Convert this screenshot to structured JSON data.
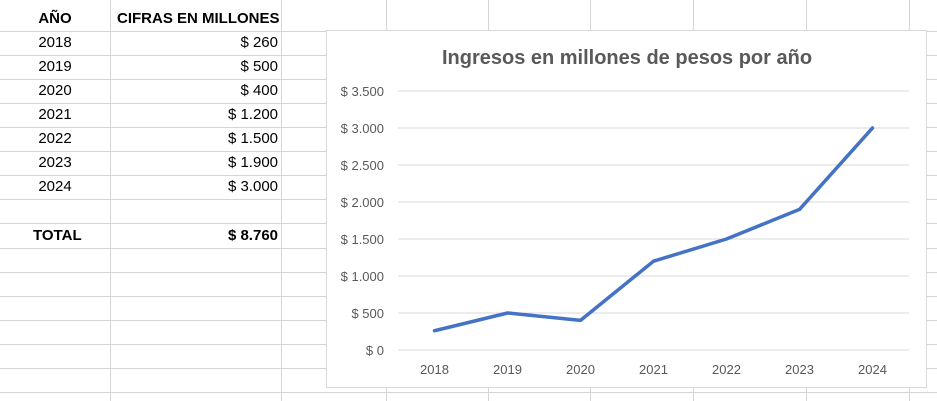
{
  "sheet": {
    "header": {
      "year": "AÑO",
      "value": "CIFRAS EN MILLONES"
    },
    "rows": [
      {
        "year": "2018",
        "value": "$ 260"
      },
      {
        "year": "2019",
        "value": "$ 500"
      },
      {
        "year": "2020",
        "value": "$ 400"
      },
      {
        "year": "2021",
        "value": "$ 1.200"
      },
      {
        "year": "2022",
        "value": "$ 1.500"
      },
      {
        "year": "2023",
        "value": "$ 1.900"
      },
      {
        "year": "2024",
        "value": "$ 3.000"
      }
    ],
    "total": {
      "label": "TOTAL",
      "value": "$ 8.760"
    }
  },
  "chart_data": {
    "type": "line",
    "title": "Ingresos en millones de pesos por año",
    "categories": [
      "2018",
      "2019",
      "2020",
      "2021",
      "2022",
      "2023",
      "2024"
    ],
    "series": [
      {
        "values": [
          260,
          500,
          400,
          1200,
          1500,
          1900,
          3000
        ]
      }
    ],
    "ylim": [
      0,
      3500
    ],
    "yticks": [
      0,
      500,
      1000,
      1500,
      2000,
      2500,
      3000,
      3500
    ],
    "ytick_labels": [
      "$ 0",
      "$ 500",
      "$ 1.000",
      "$ 1.500",
      "$ 2.000",
      "$ 2.500",
      "$ 3.000",
      "$ 3.500"
    ],
    "grid": true,
    "legend": "none",
    "colors": {
      "line": "#4472C4",
      "grid": "#d9d9d9",
      "title": "#595959",
      "ticks": "#595959"
    }
  }
}
